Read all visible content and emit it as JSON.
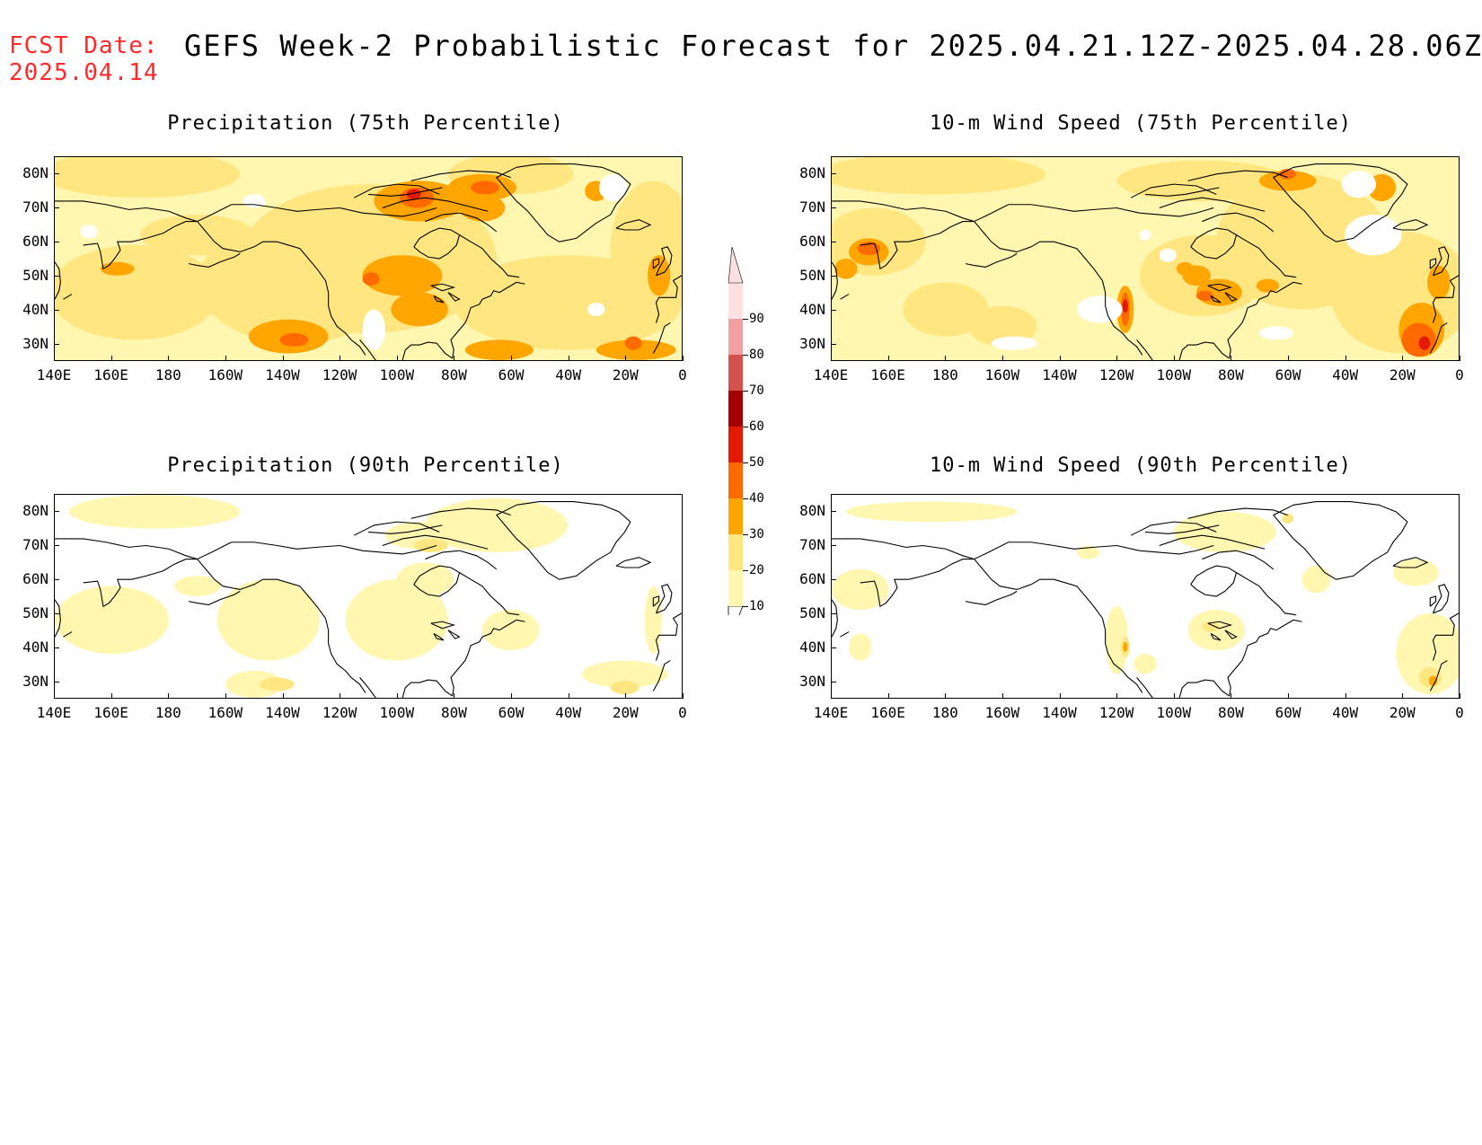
{
  "header": {
    "fcst_label": "FCST Date:\n2025.04.14",
    "title": "GEFS Week-2 Probabilistic Forecast for 2025.04.21.12Z-2025.04.28.06Z"
  },
  "panels": [
    {
      "title": "Precipitation (75th Percentile)",
      "field": "precip75"
    },
    {
      "title": "10-m Wind Speed (75th Percentile)",
      "field": "wind75"
    },
    {
      "title": "Precipitation (90th Percentile)",
      "field": "precip90"
    },
    {
      "title": "10-m Wind Speed (90th Percentile)",
      "field": "wind90"
    }
  ],
  "axes": {
    "lat_ticks": [
      "80N",
      "70N",
      "60N",
      "50N",
      "40N",
      "30N"
    ],
    "lon_ticks": [
      "140E",
      "160E",
      "180",
      "160W",
      "140W",
      "120W",
      "100W",
      "80W",
      "60W",
      "40W",
      "20W",
      "0"
    ],
    "lat_range": [
      25,
      85
    ],
    "lon_range_east": [
      140,
      360
    ]
  },
  "colorbar": {
    "levels": [
      "10",
      "20",
      "30",
      "40",
      "50",
      "60",
      "70",
      "80",
      "90"
    ],
    "colors": [
      "#fff7b0",
      "#ffe680",
      "#ffa500",
      "#ff6a00",
      "#e31a00",
      "#a50000",
      "#d4504f",
      "#f0a0a0",
      "#fde0e0"
    ]
  },
  "map_colors": {
    "c10": "#fff7b0",
    "c20": "#ffe680",
    "c30": "#ffa500",
    "c40": "#ff6a00",
    "c50": "#e31a00",
    "coast": "#000000"
  }
}
